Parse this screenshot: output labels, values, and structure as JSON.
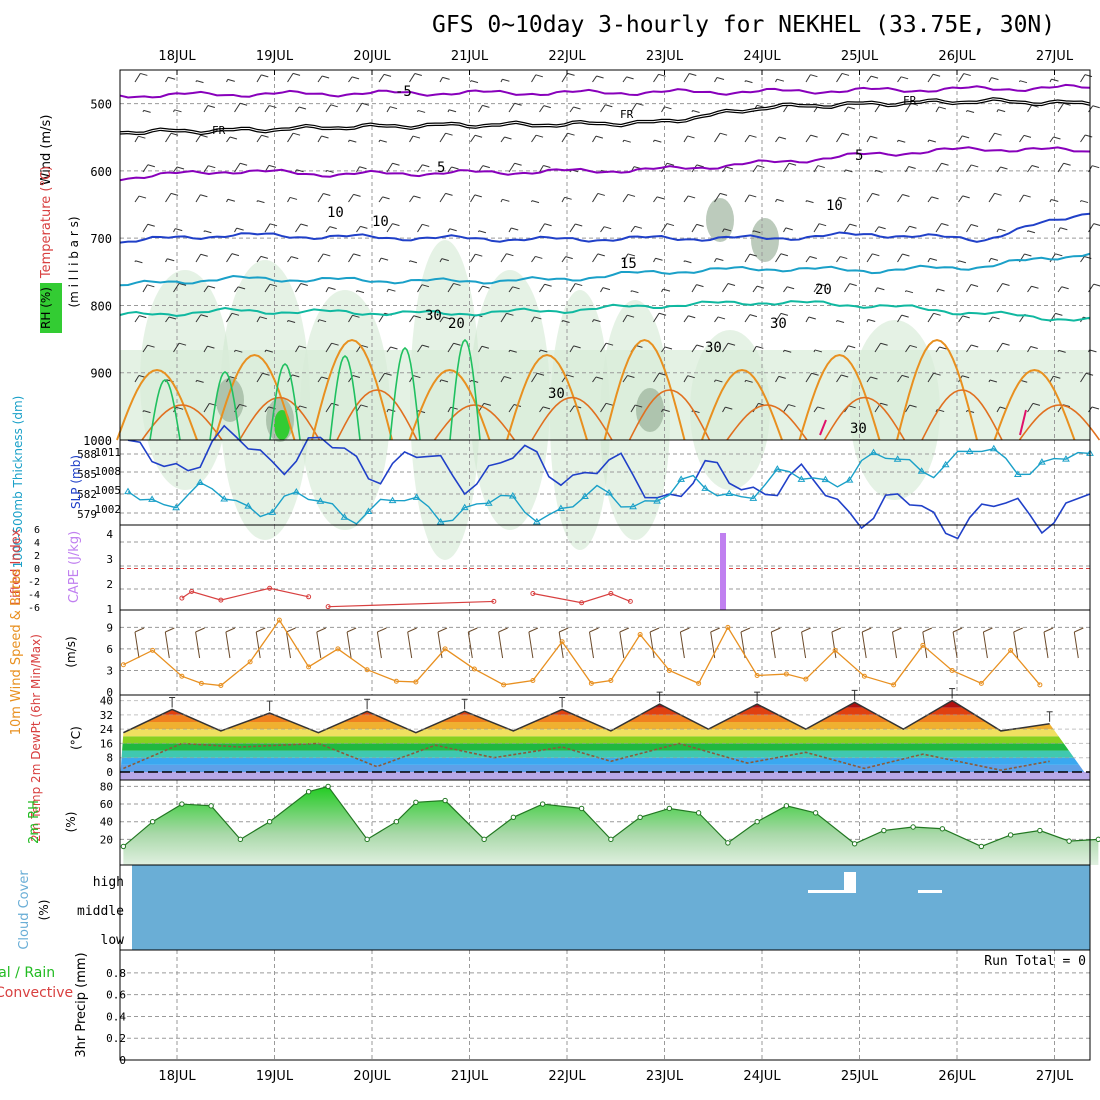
{
  "title": "GFS 0~10day 3-hourly for NEKHEL (33.75E, 30N)",
  "dates": [
    "18JUL",
    "19JUL",
    "20JUL",
    "21JUL",
    "22JUL",
    "23JUL",
    "24JUL",
    "25JUL",
    "26JUL",
    "27JUL"
  ],
  "colors": {
    "purple": "#8800bb",
    "blue": "#2040c8",
    "cyan": "#1aa0c8",
    "teal": "#10b8a0",
    "orange": "#e89020",
    "rh": "#22bb22",
    "red": "#d84040",
    "cape": "#c080f0",
    "cloud": "#6aaed6"
  },
  "chart_data": [
    {
      "type": "line",
      "panel": "upper-air",
      "ylabel_wind": "Wind (m/s)",
      "ylabel_temp": "Temperature (°C)",
      "ylabel_rh": "RH (%)",
      "ylabel_units": "(m i l l i b a r s)",
      "yticks": [
        "500",
        "600",
        "700",
        "800",
        "900",
        "1000"
      ],
      "ylim": [
        450,
        1000
      ],
      "contour_labels": [
        "-5",
        "FR",
        "FR",
        "FR",
        "5",
        "5",
        "10",
        "10",
        "10",
        "15",
        "20",
        "20",
        "30",
        "30",
        "30",
        "30",
        "30"
      ],
      "series": [
        {
          "name": "-5",
          "values": [
            488,
            486,
            485,
            484,
            484,
            483,
            482,
            480,
            478,
            476
          ]
        },
        {
          "name": "5",
          "values": [
            610,
            600,
            605,
            603,
            601,
            598,
            588,
            575,
            567,
            570
          ]
        },
        {
          "name": "10",
          "values": [
            705,
            695,
            698,
            700,
            702,
            700,
            700,
            694,
            702,
            660
          ]
        },
        {
          "name": "15",
          "values": [
            770,
            760,
            762,
            764,
            762,
            750,
            745,
            748,
            742,
            722
          ]
        },
        {
          "name": "20",
          "values": [
            815,
            808,
            810,
            812,
            808,
            800,
            795,
            800,
            812,
            822
          ]
        }
      ]
    },
    {
      "type": "line",
      "panel": "pressure",
      "ylabel_left": "1000-500mb Thickness (dm)",
      "ylabel_right": "SLP (mb)",
      "yticks_left": [
        "588",
        "585",
        "582",
        "579"
      ],
      "yticks_right": [
        "1011",
        "1008",
        "1005",
        "1002"
      ],
      "series": [
        {
          "name": "SLP",
          "values": [
            1009,
            1011,
            1010,
            1008,
            1009,
            1006,
            1007,
            1003,
            1002,
            1004
          ]
        },
        {
          "name": "Thickness",
          "values": [
            582,
            581,
            580,
            580,
            580,
            582,
            583,
            586,
            587,
            586
          ]
        }
      ]
    },
    {
      "type": "bar",
      "panel": "cape",
      "ylabel_li": "Lifted Index",
      "ylabel_cape": "CAPE (J/kg)",
      "yticks_li": [
        "6",
        "4",
        "2",
        "0",
        "-2",
        "-4",
        "-6"
      ],
      "yticks_cape": [
        "4",
        "3",
        "2",
        "1"
      ],
      "cape_day": 5.6,
      "cape_value": 4,
      "lifted_index": [
        [
          0.6,
          4.5
        ],
        [
          0.7,
          3.5
        ],
        [
          1.0,
          4.8
        ],
        [
          1.5,
          3.0
        ],
        [
          1.9,
          4.3
        ],
        [
          2.1,
          5.8
        ],
        [
          3.8,
          5.0
        ],
        [
          4.2,
          3.8
        ],
        [
          4.7,
          5.2
        ],
        [
          5.0,
          3.8
        ],
        [
          5.2,
          5.0
        ]
      ]
    },
    {
      "type": "line",
      "panel": "wind10m",
      "ylabel": "10m Wind Speed & Barbs",
      "yunit": "(m/s)",
      "yticks": [
        "9",
        "6",
        "3",
        "0"
      ],
      "values": [
        [
          0.0,
          3.8
        ],
        [
          0.3,
          5.8
        ],
        [
          0.6,
          2.2
        ],
        [
          0.8,
          1.2
        ],
        [
          1.0,
          0.9
        ],
        [
          1.3,
          4.2
        ],
        [
          1.6,
          10.0
        ],
        [
          1.9,
          3.5
        ],
        [
          2.2,
          6.0
        ],
        [
          2.5,
          3.1
        ],
        [
          2.8,
          1.5
        ],
        [
          3.0,
          1.4
        ],
        [
          3.3,
          6.0
        ],
        [
          3.6,
          3.2
        ],
        [
          3.9,
          1.0
        ],
        [
          4.2,
          1.6
        ],
        [
          4.5,
          7.0
        ],
        [
          4.8,
          1.2
        ],
        [
          5.0,
          1.6
        ],
        [
          5.3,
          8.0
        ],
        [
          5.6,
          3.0
        ],
        [
          5.9,
          1.2
        ],
        [
          6.2,
          9.0
        ],
        [
          6.5,
          2.3
        ],
        [
          6.8,
          2.5
        ],
        [
          7.0,
          1.8
        ],
        [
          7.3,
          5.8
        ],
        [
          7.6,
          2.2
        ],
        [
          7.9,
          1.0
        ],
        [
          8.2,
          6.5
        ],
        [
          8.5,
          3.0
        ],
        [
          8.8,
          1.2
        ],
        [
          9.1,
          5.8
        ],
        [
          9.4,
          1.0
        ]
      ]
    },
    {
      "type": "area",
      "panel": "temperature",
      "ylabel": "2m Temp 2m DewPt (6hr Min/Max)",
      "yunit": "(°C)",
      "yticks": [
        "40",
        "32",
        "24",
        "16",
        "8",
        "0"
      ],
      "temp": [
        [
          0.0,
          22
        ],
        [
          0.5,
          35
        ],
        [
          1.0,
          23
        ],
        [
          1.5,
          33
        ],
        [
          2.0,
          22
        ],
        [
          2.5,
          34
        ],
        [
          3.0,
          22
        ],
        [
          3.5,
          34
        ],
        [
          4.0,
          23
        ],
        [
          4.5,
          35
        ],
        [
          5.0,
          23
        ],
        [
          5.5,
          38
        ],
        [
          6.0,
          24
        ],
        [
          6.5,
          38
        ],
        [
          7.0,
          24
        ],
        [
          7.5,
          39
        ],
        [
          8.0,
          24
        ],
        [
          8.5,
          40
        ],
        [
          9.0,
          23
        ],
        [
          9.5,
          27
        ]
      ],
      "dewpt": [
        [
          0.0,
          2
        ],
        [
          0.6,
          16
        ],
        [
          1.2,
          14
        ],
        [
          2.0,
          16
        ],
        [
          2.6,
          3
        ],
        [
          3.2,
          15
        ],
        [
          3.8,
          8
        ],
        [
          4.5,
          14
        ],
        [
          5.0,
          6
        ],
        [
          5.7,
          16
        ],
        [
          6.4,
          5
        ],
        [
          7.0,
          11
        ],
        [
          7.6,
          2
        ],
        [
          8.2,
          10
        ],
        [
          9.0,
          1
        ],
        [
          9.5,
          6
        ]
      ]
    },
    {
      "type": "area",
      "panel": "rh2m",
      "ylabel": "2m RH",
      "yunit": "(%)",
      "yticks": [
        "80",
        "60",
        "40",
        "20"
      ],
      "values": [
        [
          0.0,
          12
        ],
        [
          0.3,
          40
        ],
        [
          0.6,
          60
        ],
        [
          0.9,
          58
        ],
        [
          1.2,
          20
        ],
        [
          1.5,
          40
        ],
        [
          1.9,
          74
        ],
        [
          2.1,
          80
        ],
        [
          2.5,
          20
        ],
        [
          2.8,
          40
        ],
        [
          3.0,
          62
        ],
        [
          3.3,
          64
        ],
        [
          3.7,
          20
        ],
        [
          4.0,
          45
        ],
        [
          4.3,
          60
        ],
        [
          4.7,
          55
        ],
        [
          5.0,
          20
        ],
        [
          5.3,
          45
        ],
        [
          5.6,
          55
        ],
        [
          5.9,
          50
        ],
        [
          6.2,
          16
        ],
        [
          6.5,
          40
        ],
        [
          6.8,
          58
        ],
        [
          7.1,
          50
        ],
        [
          7.5,
          15
        ],
        [
          7.8,
          30
        ],
        [
          8.1,
          34
        ],
        [
          8.4,
          32
        ],
        [
          8.8,
          12
        ],
        [
          9.1,
          25
        ],
        [
          9.4,
          30
        ],
        [
          9.7,
          18
        ],
        [
          10.0,
          20
        ]
      ]
    },
    {
      "type": "bar",
      "panel": "cloud",
      "ylabel": "Cloud Cover",
      "yunit": "(%)",
      "levels": [
        "high",
        "middle",
        "low"
      ]
    },
    {
      "type": "bar",
      "panel": "precip",
      "ylabel_total": "Total / Rain",
      "ylabel_conv": "Convective",
      "ylabel": "3hr Precip (mm)",
      "yticks": [
        "0.8",
        "0.6",
        "0.4",
        "0.2",
        "0"
      ],
      "run_total": "Run Total = 0"
    }
  ]
}
